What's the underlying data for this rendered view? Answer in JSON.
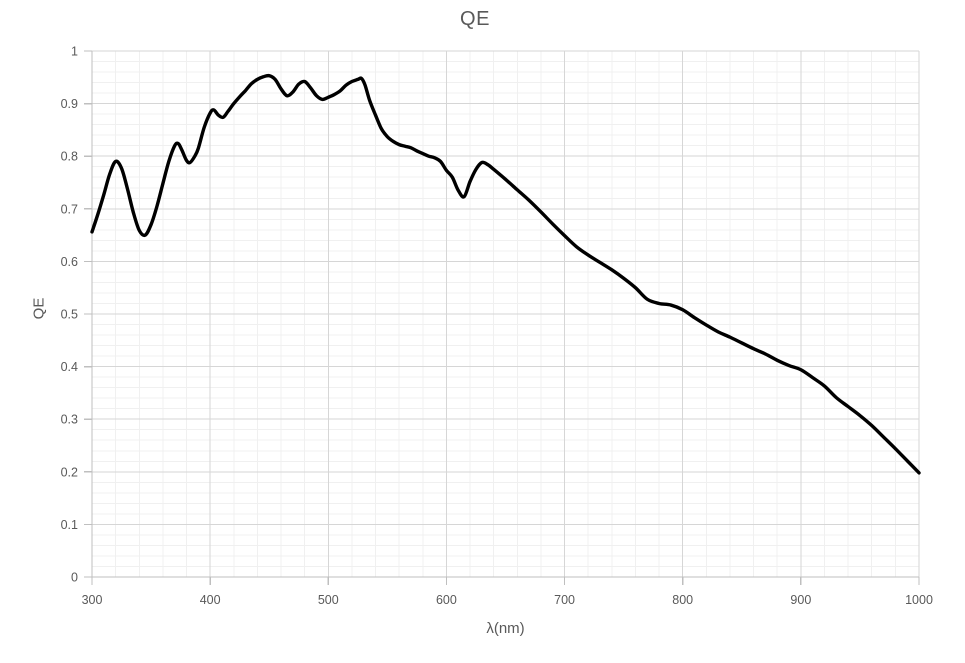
{
  "chart_data": {
    "type": "line",
    "title": "QE",
    "xlabel": "λ(nm)",
    "ylabel": "QE",
    "xlim": [
      300,
      1000
    ],
    "ylim": [
      0,
      1
    ],
    "x_ticks": [
      300,
      400,
      500,
      600,
      700,
      800,
      900,
      1000
    ],
    "y_ticks": [
      0,
      0.1,
      0.2,
      0.3,
      0.4,
      0.5,
      0.6,
      0.7,
      0.8,
      0.9,
      1
    ],
    "x_minor_step": 20,
    "y_minor_step": 0.02,
    "grid": {
      "major": true,
      "minor": true
    },
    "legend_position": "none",
    "series": [
      {
        "name": "QE",
        "x": [
          300,
          305,
          310,
          315,
          320,
          325,
          330,
          335,
          340,
          345,
          350,
          355,
          360,
          365,
          370,
          373,
          376,
          380,
          383,
          387,
          390,
          395,
          400,
          403,
          407,
          411,
          415,
          420,
          425,
          430,
          435,
          440,
          445,
          450,
          455,
          460,
          465,
          470,
          475,
          480,
          485,
          490,
          495,
          500,
          505,
          510,
          515,
          520,
          525,
          528,
          531,
          535,
          540,
          545,
          550,
          555,
          560,
          565,
          570,
          575,
          580,
          585,
          590,
          595,
          600,
          605,
          610,
          615,
          620,
          625,
          630,
          635,
          640,
          650,
          660,
          670,
          680,
          690,
          700,
          710,
          720,
          730,
          740,
          750,
          760,
          770,
          780,
          790,
          800,
          810,
          820,
          830,
          840,
          850,
          860,
          870,
          880,
          890,
          900,
          910,
          920,
          930,
          940,
          950,
          960,
          970,
          980,
          990,
          1000
        ],
        "y": [
          0.656,
          0.69,
          0.727,
          0.766,
          0.79,
          0.777,
          0.738,
          0.693,
          0.659,
          0.65,
          0.67,
          0.705,
          0.748,
          0.79,
          0.82,
          0.824,
          0.812,
          0.792,
          0.788,
          0.8,
          0.815,
          0.855,
          0.882,
          0.888,
          0.878,
          0.874,
          0.885,
          0.9,
          0.913,
          0.925,
          0.938,
          0.946,
          0.951,
          0.953,
          0.946,
          0.928,
          0.915,
          0.922,
          0.937,
          0.942,
          0.93,
          0.915,
          0.908,
          0.912,
          0.917,
          0.924,
          0.935,
          0.942,
          0.946,
          0.948,
          0.936,
          0.906,
          0.878,
          0.852,
          0.837,
          0.828,
          0.822,
          0.819,
          0.816,
          0.81,
          0.805,
          0.8,
          0.797,
          0.79,
          0.773,
          0.76,
          0.735,
          0.723,
          0.752,
          0.775,
          0.788,
          0.784,
          0.775,
          0.756,
          0.736,
          0.716,
          0.694,
          0.671,
          0.649,
          0.628,
          0.612,
          0.598,
          0.584,
          0.568,
          0.55,
          0.528,
          0.52,
          0.517,
          0.508,
          0.493,
          0.479,
          0.466,
          0.456,
          0.445,
          0.434,
          0.424,
          0.412,
          0.402,
          0.394,
          0.379,
          0.363,
          0.341,
          0.324,
          0.307,
          0.288,
          0.266,
          0.244,
          0.221,
          0.198
        ]
      }
    ]
  },
  "colors": {
    "line": "#000000",
    "text": "#595959",
    "major_grid": "#d6d6d6",
    "minor_grid": "#f0f0f0",
    "axis": "#bfbfbf",
    "background": "#ffffff"
  }
}
